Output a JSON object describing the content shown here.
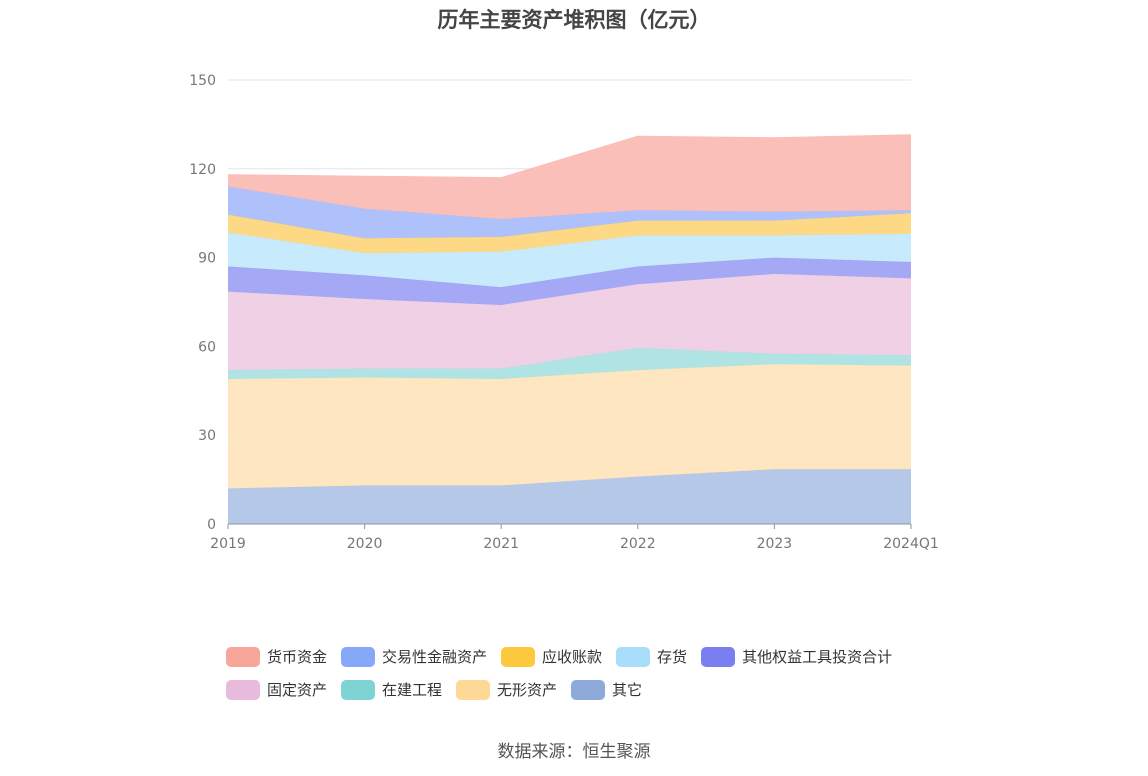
{
  "title": "历年主要资产堆积图（亿元）",
  "source": "数据来源：恒生聚源",
  "legend_rows": [
    [
      0,
      1,
      2,
      3,
      4
    ],
    [
      5,
      6,
      7,
      8
    ]
  ],
  "chart_data": {
    "type": "area",
    "stacked": true,
    "title": "历年主要资产堆积图（亿元）",
    "xlabel": "",
    "ylabel": "",
    "categories": [
      "2019",
      "2020",
      "2021",
      "2022",
      "2023",
      "2024Q1"
    ],
    "ylim": [
      0,
      150
    ],
    "yticks": [
      0,
      30,
      60,
      90,
      120,
      150
    ],
    "grid": true,
    "legend_position": "bottom",
    "series": [
      {
        "name": "其它",
        "color": "#8eaadb",
        "fill": "#b1c5e6",
        "values": [
          12.0,
          13.0,
          13.0,
          16.0,
          18.5,
          18.5
        ]
      },
      {
        "name": "无形资产",
        "color": "#fdd897",
        "fill": "#fde5bd",
        "values": [
          37.0,
          36.5,
          36.0,
          36.0,
          35.5,
          35.0
        ]
      },
      {
        "name": "在建工程",
        "color": "#7fd3d3",
        "fill": "#ace2e2",
        "values": [
          3.0,
          3.0,
          3.5,
          7.5,
          3.5,
          3.5
        ]
      },
      {
        "name": "固定资产",
        "color": "#e8bbdc",
        "fill": "#eecee4",
        "values": [
          26.5,
          23.5,
          21.5,
          21.5,
          27.0,
          26.0
        ]
      },
      {
        "name": "其他权益工具投资合计",
        "color": "#7b7ef0",
        "fill": "#a0a3f3",
        "values": [
          8.5,
          8.0,
          6.0,
          6.0,
          5.5,
          5.5
        ]
      },
      {
        "name": "存货",
        "color": "#a8defa",
        "fill": "#c4e9fc",
        "values": [
          11.5,
          7.5,
          12.0,
          10.5,
          7.5,
          9.5
        ]
      },
      {
        "name": "应收账款",
        "color": "#fcc83e",
        "fill": "#fdd67e",
        "values": [
          6.0,
          5.0,
          5.0,
          5.0,
          5.0,
          7.0
        ]
      },
      {
        "name": "交易性金融资产",
        "color": "#87a7f8",
        "fill": "#abbefb",
        "values": [
          9.5,
          10.0,
          6.0,
          3.5,
          3.0,
          1.0
        ]
      },
      {
        "name": "货币资金",
        "color": "#f9a69a",
        "fill": "#fbbcb5",
        "values": [
          4.0,
          11.0,
          14.0,
          25.0,
          25.0,
          25.5
        ]
      }
    ]
  }
}
